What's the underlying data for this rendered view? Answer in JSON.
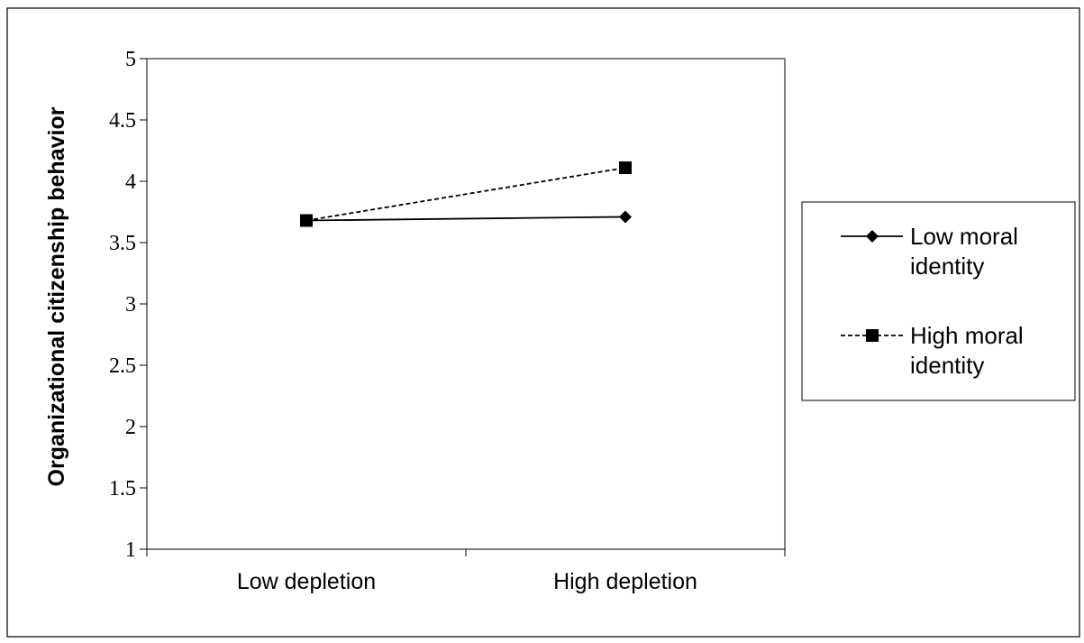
{
  "chart_data": {
    "type": "line",
    "title": "",
    "xlabel": "",
    "ylabel": "Organizational citizenship behavior",
    "categories": [
      "Low depletion",
      "High depletion"
    ],
    "ylim": [
      1,
      5
    ],
    "yticks": [
      "1",
      "1.5",
      "2",
      "2.5",
      "3",
      "3.5",
      "4",
      "4.5",
      "5"
    ],
    "grid": false,
    "legend_position": "right",
    "series": [
      {
        "name": "Low moral identity",
        "name_lines": [
          "Low moral",
          "identity"
        ],
        "values": [
          3.68,
          3.71
        ],
        "marker": "diamond",
        "line_style": "solid",
        "color": "#000000"
      },
      {
        "name": "High moral identity",
        "name_lines": [
          "High moral",
          "identity"
        ],
        "values": [
          3.68,
          4.11
        ],
        "marker": "square",
        "line_style": "dashed",
        "color": "#000000"
      }
    ]
  }
}
